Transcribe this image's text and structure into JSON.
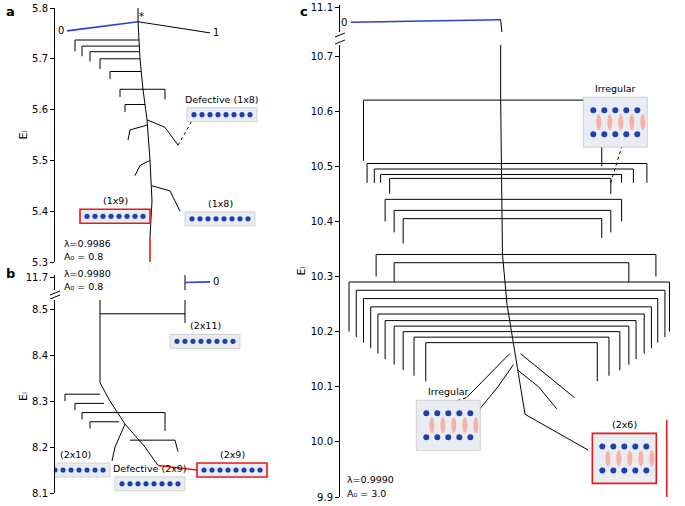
{
  "chart_data": [
    {
      "type": "tree",
      "panel": "a",
      "ylabel": "Eᵢ",
      "tick_labels": "y",
      "grid": false,
      "color": "#000000",
      "xlim": [
        55,
        280
      ],
      "ylim": [
        5.3,
        5.8
      ],
      "yticks": [
        5.3,
        5.4,
        5.5,
        5.6,
        5.7,
        5.8
      ],
      "params": [
        "λ=0.9986",
        "A₀ = 0.8"
      ],
      "node_labels": [
        {
          "text": "0",
          "x": 61,
          "y": 5.755
        },
        {
          "text": "*",
          "x": 141,
          "y": 5.783
        },
        {
          "text": "1",
          "x": 216,
          "y": 5.751
        }
      ],
      "branches": [
        {
          "points": [
            [
              67,
              5.755
            ],
            [
              138,
              5.773
            ]
          ],
          "color": "#2b3fd4"
        },
        {
          "points": [
            [
              138,
              5.8
            ],
            [
              138,
              5.773
            ],
            [
              210,
              5.751
            ]
          ]
        },
        {
          "points": [
            [
              138,
              5.773
            ],
            [
              140,
              5.7
            ],
            [
              143,
              5.64
            ],
            [
              147,
              5.58
            ],
            [
              150,
              5.5
            ],
            [
              152,
              5.42
            ],
            [
              150,
              5.35
            ]
          ]
        },
        {
          "points": [
            [
              75,
              5.715
            ],
            [
              75,
              5.737
            ],
            [
              139,
              5.737
            ]
          ]
        },
        {
          "points": [
            [
              82,
              5.705
            ],
            [
              82,
              5.725
            ],
            [
              139,
              5.725
            ]
          ]
        },
        {
          "points": [
            [
              90,
              5.695
            ],
            [
              90,
              5.714
            ],
            [
              139,
              5.714
            ]
          ]
        },
        {
          "points": [
            [
              100,
              5.68
            ],
            [
              100,
              5.7
            ],
            [
              140,
              5.7
            ]
          ]
        },
        {
          "points": [
            [
              110,
              5.66
            ],
            [
              110,
              5.675
            ],
            [
              141,
              5.675
            ]
          ]
        },
        {
          "points": [
            [
              120,
              5.625
            ],
            [
              120,
              5.64
            ],
            [
              143,
              5.64
            ],
            [
              165,
              5.64
            ],
            [
              165,
              5.62
            ]
          ]
        },
        {
          "points": [
            [
              125,
              5.595
            ],
            [
              125,
              5.61
            ],
            [
              145,
              5.61
            ]
          ]
        },
        {
          "points": [
            [
              147,
              5.58
            ],
            [
              165,
              5.565
            ],
            [
              178,
              5.53
            ]
          ]
        },
        {
          "points": [
            [
              128,
              5.54
            ],
            [
              130,
              5.56
            ],
            [
              148,
              5.57
            ]
          ]
        },
        {
          "points": [
            [
              135,
              5.47
            ],
            [
              140,
              5.49
            ],
            [
              150,
              5.5
            ]
          ]
        },
        {
          "points": [
            [
              152,
              5.45
            ],
            [
              170,
              5.44
            ],
            [
              180,
              5.4
            ]
          ]
        },
        {
          "points": [
            [
              150,
              5.35
            ],
            [
              150,
              5.3
            ]
          ],
          "color": "#e41a1c"
        },
        {
          "points": [
            [
              178,
              5.53
            ],
            [
              192,
              5.578
            ]
          ],
          "line_style": "dotted"
        }
      ],
      "insets": [
        {
          "label": "(1x9)",
          "x": 115,
          "y": 5.39,
          "color": "#e41a1c"
        },
        {
          "label": "(1x8)",
          "x": 220,
          "y": 5.385
        },
        {
          "label": "Defective (1x8)",
          "x": 222,
          "y": 5.59
        }
      ]
    },
    {
      "type": "tree",
      "panel": "b",
      "ylabel": "Eᵢ",
      "tick_labels": "y",
      "grid": false,
      "color": "#000000",
      "xlim": [
        55,
        280
      ],
      "ylim": [
        8.1,
        8.52
      ],
      "yticks": [
        8.1,
        8.2,
        8.3,
        8.4,
        8.5
      ],
      "y2lim": [
        11.64,
        11.71
      ],
      "y2ticks": [
        11.7
      ],
      "params": [
        "λ=0.9980",
        "A₀ = 0.8"
      ],
      "node_labels": [
        {
          "text": "0",
          "x": 216,
          "y": 11.678
        }
      ],
      "branches": [
        {
          "points": [
            [
              185,
              11.71
            ],
            [
              185,
              11.675
            ]
          ]
        },
        {
          "points": [
            [
              185,
              11.675
            ],
            [
              210,
              11.678
            ]
          ],
          "color": "#2b3fd4"
        },
        {
          "points": [
            [
              185,
              11.675
            ],
            [
              185,
              8.47
            ]
          ]
        },
        {
          "points": [
            [
              100,
              8.52
            ],
            [
              100,
              8.49
            ],
            [
              185,
              8.49
            ]
          ]
        },
        {
          "points": [
            [
              100,
              8.49
            ],
            [
              100,
              8.34
            ],
            [
              110,
              8.3
            ],
            [
              125,
              8.25
            ],
            [
              145,
              8.2
            ],
            [
              158,
              8.16
            ]
          ]
        },
        {
          "points": [
            [
              65,
              8.3
            ],
            [
              65,
              8.315
            ],
            [
              100,
              8.315
            ]
          ]
        },
        {
          "points": [
            [
              75,
              8.28
            ],
            [
              75,
              8.295
            ],
            [
              104,
              8.295
            ]
          ]
        },
        {
          "points": [
            [
              82,
              8.26
            ],
            [
              82,
              8.275
            ],
            [
              113,
              8.275
            ],
            [
              165,
              8.275
            ],
            [
              165,
              8.235
            ]
          ]
        },
        {
          "points": [
            [
              90,
              8.24
            ],
            [
              90,
              8.255
            ],
            [
              119,
              8.255
            ]
          ]
        },
        {
          "points": [
            [
              130,
              8.215
            ],
            [
              175,
              8.215
            ],
            [
              178,
              8.19
            ]
          ]
        },
        {
          "points": [
            [
              125,
              8.25
            ],
            [
              115,
              8.2
            ],
            [
              112,
              8.17
            ]
          ]
        },
        {
          "points": [
            [
              158,
              8.16
            ],
            [
              197,
              8.15
            ]
          ],
          "color": "#e41a1c"
        }
      ],
      "insets": [
        {
          "label": "(2x11)",
          "x": 205,
          "y": 8.43
        },
        {
          "label": "(2x10)",
          "x": 75,
          "y": 8.15
        },
        {
          "label": "(2x9)",
          "x": 232,
          "y": 8.15,
          "color": "#e41a1c"
        },
        {
          "label": "Defective (2x9)",
          "x": 150,
          "y": 8.12
        }
      ]
    },
    {
      "type": "tree",
      "panel": "c",
      "ylabel": "Eᵢ",
      "tick_labels": "y",
      "grid": false,
      "color": "#000000",
      "xlim": [
        300,
        680
      ],
      "ylim": [
        9.9,
        10.72
      ],
      "yticks": [
        9.9,
        {
          "value": 10,
          "label": "10.0"
        },
        10.1,
        10.2,
        10.3,
        10.4,
        10.5,
        10.6,
        10.7
      ],
      "y2lim": [
        11.0,
        11.11
      ],
      "y2ticks": [
        11.1
      ],
      "params": [
        "λ=0.9990",
        "A₀ = 3.0"
      ],
      "node_labels": [
        {
          "text": "0",
          "x": 304,
          "y": 11.04
        }
      ],
      "branches": [
        {
          "points": [
            [
              312,
              11.04
            ],
            [
              478,
              11.05
            ]
          ],
          "color": "#2b3fd4"
        },
        {
          "points": [
            [
              478,
              11.05
            ],
            [
              478,
              10.62
            ],
            [
              480,
              10.34
            ],
            [
              485,
              10.25
            ],
            [
              495,
              10.15
            ],
            [
              505,
              10.05
            ],
            [
              575,
              9.985
            ]
          ]
        },
        {
          "points": [
            [
              326,
              10.51
            ],
            [
              326,
              10.62
            ],
            [
              590,
              10.62
            ],
            [
              590,
              10.5
            ]
          ]
        },
        {
          "points": [
            [
              330,
              10.47
            ],
            [
              330,
              10.505
            ],
            [
              640,
              10.505
            ],
            [
              640,
              10.47
            ]
          ]
        },
        {
          "points": [
            [
              338,
              10.47
            ],
            [
              338,
              10.495
            ],
            [
              625,
              10.495
            ],
            [
              625,
              10.47
            ]
          ]
        },
        {
          "points": [
            [
              345,
              10.47
            ],
            [
              345,
              10.485
            ],
            [
              612,
              10.485
            ],
            [
              612,
              10.47
            ]
          ]
        },
        {
          "points": [
            [
              355,
              10.45
            ],
            [
              355,
              10.478
            ],
            [
              600,
              10.478
            ],
            [
              600,
              10.45
            ]
          ]
        },
        {
          "points": [
            [
              350,
              10.4
            ],
            [
              350,
              10.44
            ],
            [
              612,
              10.44
            ],
            [
              612,
              10.4
            ]
          ]
        },
        {
          "points": [
            [
              360,
              10.38
            ],
            [
              360,
              10.42
            ],
            [
              600,
              10.42
            ],
            [
              600,
              10.38
            ]
          ]
        },
        {
          "points": [
            [
              370,
              10.36
            ],
            [
              370,
              10.405
            ],
            [
              590,
              10.405
            ],
            [
              590,
              10.37
            ]
          ]
        },
        {
          "points": [
            [
              340,
              10.3
            ],
            [
              340,
              10.34
            ],
            [
              650,
              10.34
            ],
            [
              650,
              10.3
            ]
          ]
        },
        {
          "points": [
            [
              360,
              10.29
            ],
            [
              360,
              10.325
            ],
            [
              620,
              10.325
            ],
            [
              620,
              10.29
            ]
          ]
        },
        {
          "points": [
            [
              310,
              10.2
            ],
            [
              310,
              10.29
            ],
            [
              665,
              10.29
            ],
            [
              665,
              10.2
            ]
          ]
        },
        {
          "points": [
            [
              318,
              10.19
            ],
            [
              318,
              10.275
            ],
            [
              660,
              10.275
            ],
            [
              660,
              10.19
            ]
          ]
        },
        {
          "points": [
            [
              326,
              10.18
            ],
            [
              326,
              10.26
            ],
            [
              652,
              10.26
            ],
            [
              652,
              10.18
            ]
          ]
        },
        {
          "points": [
            [
              334,
              10.17
            ],
            [
              334,
              10.245
            ],
            [
              645,
              10.245
            ],
            [
              645,
              10.17
            ]
          ]
        },
        {
          "points": [
            [
              342,
              10.16
            ],
            [
              342,
              10.232
            ],
            [
              637,
              10.232
            ],
            [
              637,
              10.16
            ]
          ]
        },
        {
          "points": [
            [
              350,
              10.15
            ],
            [
              350,
              10.22
            ],
            [
              628,
              10.22
            ],
            [
              628,
              10.15
            ]
          ]
        },
        {
          "points": [
            [
              360,
              10.14
            ],
            [
              360,
              10.21
            ],
            [
              620,
              10.21
            ],
            [
              620,
              10.14
            ]
          ]
        },
        {
          "points": [
            [
              370,
              10.13
            ],
            [
              370,
              10.2
            ],
            [
              610,
              10.2
            ],
            [
              610,
              10.13
            ]
          ]
        },
        {
          "points": [
            [
              382,
              10.12
            ],
            [
              382,
              10.19
            ],
            [
              598,
              10.19
            ],
            [
              598,
              10.12
            ]
          ]
        },
        {
          "points": [
            [
              395,
              10.11
            ],
            [
              395,
              10.18
            ],
            [
              585,
              10.18
            ],
            [
              585,
              10.11
            ]
          ]
        },
        {
          "points": [
            [
              440,
              10.08
            ],
            [
              470,
              10.13
            ],
            [
              488,
              10.16
            ]
          ]
        },
        {
          "points": [
            [
              455,
              10.06
            ],
            [
              475,
              10.1
            ],
            [
              492,
              10.14
            ]
          ]
        },
        {
          "points": [
            [
              540,
              10.06
            ],
            [
              520,
              10.1
            ],
            [
              497,
              10.13
            ]
          ]
        },
        {
          "points": [
            [
              560,
              10.08
            ],
            [
              530,
              10.12
            ],
            [
              500,
              10.16
            ]
          ]
        },
        {
          "points": [
            [
              600,
              10.47
            ],
            [
              612,
              10.535
            ]
          ],
          "line_style": "dotted"
        },
        {
          "points": [
            [
              430,
              10.075
            ],
            [
              440,
              10.08
            ]
          ],
          "line_style": "dotted"
        },
        {
          "points": [
            [
              662,
              10.04
            ],
            [
              662,
              9.9
            ]
          ],
          "color": "#e41a1c"
        }
      ],
      "insets": [
        {
          "label": "Irregular",
          "x": 605,
          "y": 10.58
        },
        {
          "label": "Irregular",
          "x": 420,
          "y": 10.03
        },
        {
          "label": "(2x6)",
          "x": 615,
          "y": 9.97,
          "color": "#e41a1c"
        }
      ]
    }
  ]
}
